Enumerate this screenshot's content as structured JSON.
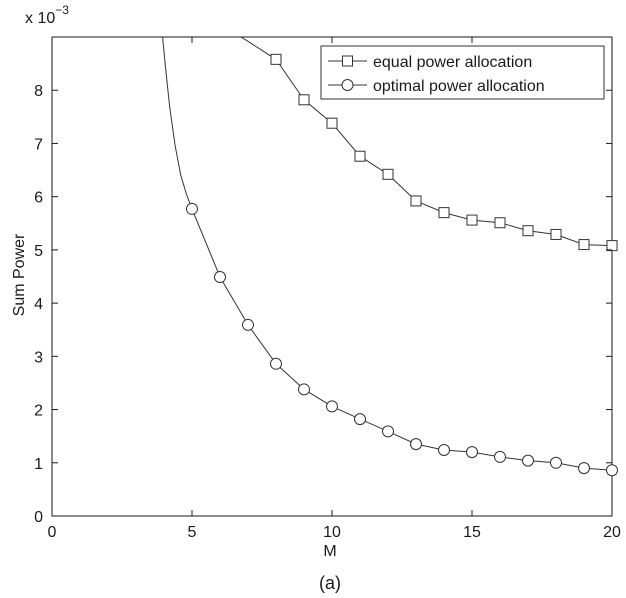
{
  "chart_data": {
    "type": "line",
    "xlabel": "M",
    "ylabel": "Sum Power",
    "caption": "(a)",
    "y_multiplier_base": "x 10",
    "y_multiplier_exponent": "−3",
    "xlim": [
      0,
      20
    ],
    "ylim": [
      0,
      9
    ],
    "x_ticks": [
      0,
      5,
      10,
      15,
      20
    ],
    "y_ticks": [
      0,
      1,
      2,
      3,
      4,
      5,
      6,
      7,
      8
    ],
    "grid": false,
    "legend_position": "top-right",
    "series": [
      {
        "name": "equal power allocation",
        "marker": "square",
        "curve": [
          [
            6.75,
            9.0
          ],
          [
            7.0,
            8.92
          ]
        ],
        "points": [
          [
            8,
            8.58
          ],
          [
            9,
            7.82
          ],
          [
            10,
            7.38
          ],
          [
            11,
            6.76
          ],
          [
            12,
            6.42
          ],
          [
            13,
            5.92
          ],
          [
            14,
            5.7
          ],
          [
            15,
            5.56
          ],
          [
            16,
            5.51
          ],
          [
            17,
            5.36
          ],
          [
            18,
            5.29
          ],
          [
            19,
            5.1
          ],
          [
            20,
            5.08
          ]
        ]
      },
      {
        "name": "optimal power allocation",
        "marker": "circle",
        "curve": [
          [
            3.95,
            9.0
          ],
          [
            4.05,
            8.45
          ],
          [
            4.2,
            7.7
          ],
          [
            4.4,
            6.95
          ],
          [
            4.6,
            6.4
          ],
          [
            4.8,
            6.05
          ]
        ],
        "points": [
          [
            5,
            5.77
          ],
          [
            6,
            4.49
          ],
          [
            7,
            3.59
          ],
          [
            8,
            2.86
          ],
          [
            9,
            2.38
          ],
          [
            10,
            2.06
          ],
          [
            11,
            1.82
          ],
          [
            12,
            1.59
          ],
          [
            13,
            1.35
          ],
          [
            14,
            1.24
          ],
          [
            15,
            1.2
          ],
          [
            16,
            1.11
          ],
          [
            17,
            1.04
          ],
          [
            18,
            1.0
          ],
          [
            19,
            0.9
          ],
          [
            20,
            0.86
          ]
        ]
      }
    ]
  }
}
